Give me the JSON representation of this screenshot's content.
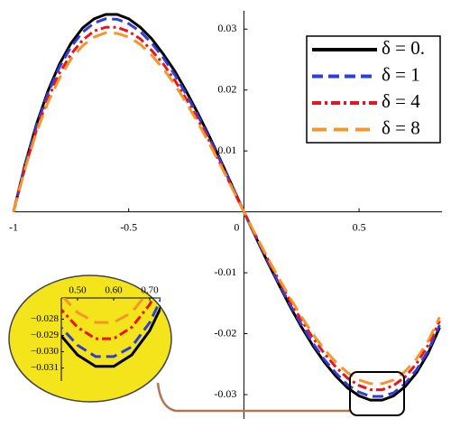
{
  "chart_data": {
    "type": "line",
    "x": [
      -1,
      -0.95,
      -0.9,
      -0.85,
      -0.8,
      -0.75,
      -0.7,
      -0.65,
      -0.6,
      -0.55,
      -0.5,
      -0.45,
      -0.4,
      -0.35,
      -0.3,
      -0.25,
      -0.2,
      -0.15,
      -0.1,
      -0.05,
      0,
      0.05,
      0.1,
      0.15,
      0.2,
      0.25,
      0.3,
      0.35,
      0.4,
      0.45,
      0.5,
      0.55,
      0.6,
      0.65,
      0.7,
      0.75,
      0.8,
      0.85
    ],
    "series": [
      {
        "name": "δ = 0.",
        "color": "#000000",
        "values": [
          0,
          0.0078,
          0.0144,
          0.0199,
          0.0243,
          0.0277,
          0.0302,
          0.0317,
          0.0324,
          0.0324,
          0.0317,
          0.0303,
          0.0284,
          0.0259,
          0.0231,
          0.0198,
          0.0162,
          0.0124,
          0.0084,
          0.0042,
          0,
          -0.004,
          -0.008,
          -0.0118,
          -0.0155,
          -0.0189,
          -0.022,
          -0.0247,
          -0.027,
          -0.0289,
          -0.0302,
          -0.0309,
          -0.0309,
          -0.0302,
          -0.0287,
          -0.0264,
          -0.0232,
          -0.019
        ]
      },
      {
        "name": "δ = 1",
        "color": "#2f3fd6",
        "values": [
          0,
          0.0076,
          0.0141,
          0.0195,
          0.0238,
          0.0271,
          0.0295,
          0.031,
          0.0317,
          0.0316,
          0.0309,
          0.0296,
          0.0277,
          0.0253,
          0.0225,
          0.0193,
          0.0158,
          0.0121,
          0.0082,
          0.0041,
          0,
          -0.0039,
          -0.0078,
          -0.0116,
          -0.0152,
          -0.0185,
          -0.0216,
          -0.0243,
          -0.0265,
          -0.0284,
          -0.0296,
          -0.0303,
          -0.0303,
          -0.0297,
          -0.0282,
          -0.0259,
          -0.0228,
          -0.0186
        ]
      },
      {
        "name": "δ = 4",
        "color": "#e8141e",
        "values": [
          0,
          0.0073,
          0.0135,
          0.0186,
          0.0228,
          0.0259,
          0.0282,
          0.0297,
          0.0303,
          0.0303,
          0.0296,
          0.0284,
          0.0265,
          0.0243,
          0.0216,
          0.0185,
          0.0152,
          0.0116,
          0.0078,
          0.0039,
          0,
          -0.0038,
          -0.0075,
          -0.0111,
          -0.0146,
          -0.0178,
          -0.0207,
          -0.0233,
          -0.0255,
          -0.0273,
          -0.0285,
          -0.0292,
          -0.0292,
          -0.0285,
          -0.0271,
          -0.0249,
          -0.0219,
          -0.0179
        ]
      },
      {
        "name": "δ = 8",
        "color": "#f5962a",
        "values": [
          0,
          0.0071,
          0.0131,
          0.018,
          0.022,
          0.0251,
          0.0273,
          0.0287,
          0.0294,
          0.0293,
          0.0287,
          0.0275,
          0.0257,
          0.0235,
          0.0209,
          0.0179,
          0.0147,
          0.0112,
          0.0076,
          0.0038,
          0,
          -0.0037,
          -0.0073,
          -0.0108,
          -0.0141,
          -0.0172,
          -0.0201,
          -0.0226,
          -0.0247,
          -0.0264,
          -0.0276,
          -0.0282,
          -0.0282,
          -0.0276,
          -0.0262,
          -0.0241,
          -0.0212,
          -0.0173
        ]
      }
    ],
    "xlim": [
      -1,
      0.86
    ],
    "ylim": [
      -0.034,
      0.033
    ],
    "xticks": [
      -1,
      -0.5,
      0,
      0.5
    ],
    "yticks": [
      -0.03,
      -0.02,
      -0.01,
      0.01,
      0.02,
      0.03
    ],
    "legend": "upper right",
    "inset": {
      "xlim": [
        0.455,
        0.73
      ],
      "ylim": [
        -0.0318,
        -0.0267
      ],
      "xticks": [
        {
          "value": 0.5,
          "label": "0.50"
        },
        {
          "value": 0.6,
          "label": "0.60"
        },
        {
          "value": 0.7,
          "label": "0.70"
        }
      ],
      "yticks": [
        {
          "value": -0.028,
          "label": "−0.028"
        },
        {
          "value": -0.029,
          "label": "−0.029"
        },
        {
          "value": -0.03,
          "label": "−0.030"
        },
        {
          "value": -0.031,
          "label": "−0.031"
        }
      ]
    }
  }
}
